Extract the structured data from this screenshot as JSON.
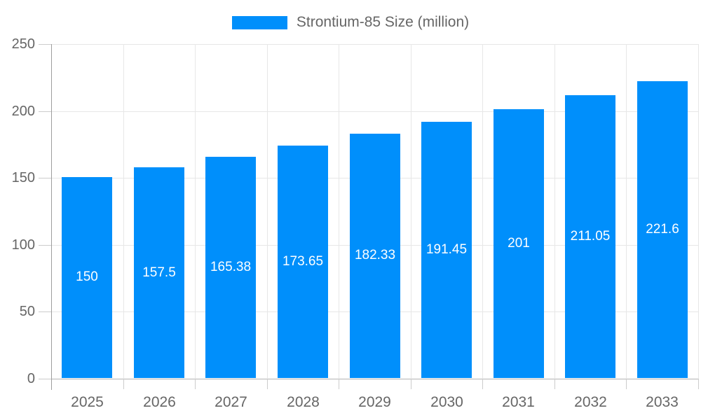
{
  "chart_data": {
    "type": "bar",
    "title": "",
    "legend": {
      "label": "Strontium-85 Size (million)",
      "position": "top"
    },
    "categories": [
      "2025",
      "2026",
      "2027",
      "2028",
      "2029",
      "2030",
      "2031",
      "2032",
      "2033"
    ],
    "series": [
      {
        "name": "Strontium-85 Size (million)",
        "values": [
          150,
          157.5,
          165.38,
          173.65,
          182.33,
          191.45,
          201,
          211.05,
          221.6
        ],
        "labels": [
          "150",
          "157.5",
          "165.38",
          "173.65",
          "182.33",
          "191.45",
          "201",
          "211.05",
          "221.6"
        ]
      }
    ],
    "xlabel": "",
    "ylabel": "",
    "ylim": [
      0,
      250
    ],
    "yticks": [
      0,
      50,
      100,
      150,
      200,
      250
    ],
    "ytick_labels": [
      "0",
      "50",
      "100",
      "150",
      "200",
      "250"
    ],
    "grid": true,
    "colors": {
      "bar": "#008FFB",
      "data_label_text": "#ffffff",
      "axis_text": "#666666",
      "legend_text": "#666666",
      "gridline": "#e7e7e7",
      "x_axis_line": "#b3b3b3",
      "y_axis_line": "#9e9e9e",
      "tick": "#cccccc"
    }
  }
}
